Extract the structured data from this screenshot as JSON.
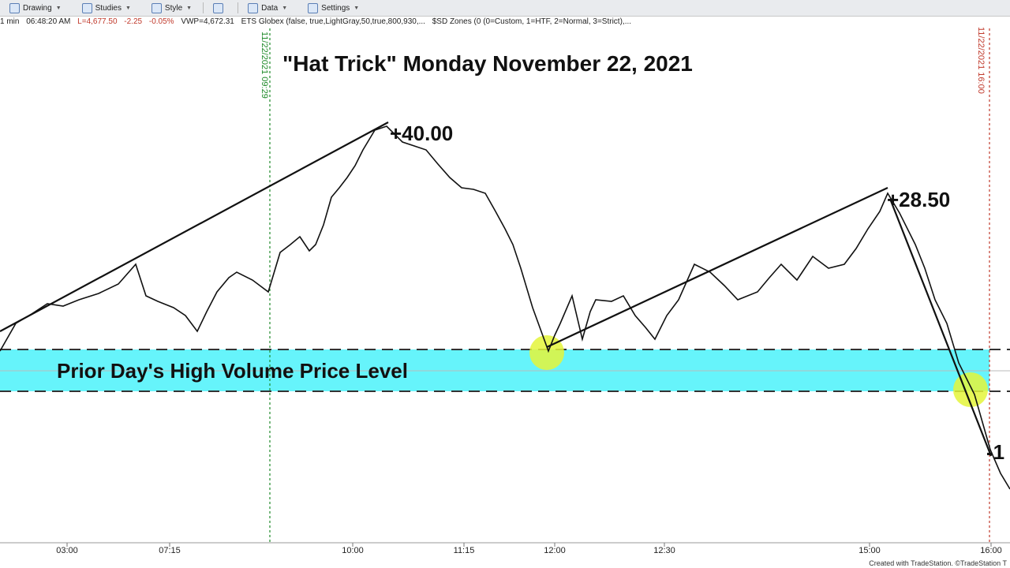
{
  "toolbar": {
    "items": [
      "Drawing",
      "Studies",
      "Style",
      "Data",
      "Settings"
    ]
  },
  "status": {
    "interval": "1 min",
    "time": "06:48:20 AM",
    "last": "L=4,677.50",
    "change": "-2.25",
    "change_pct": "-0.05%",
    "vwap": "VWP=4,672.31",
    "study_1": "ETS Globex (false,  true,LightGray,50,true,800,930,...",
    "study_2": "$SD Zones (0  (0=Custom, 1=HTF, 2=Normal, 3=Strict),..."
  },
  "title": "\"Hat Trick\" Monday November 22, 2021",
  "markers": {
    "start": "11/22/2021 09:29",
    "end": "11/22/2021 16:00"
  },
  "annotations": [
    "+40.00",
    "+28.50",
    "-1"
  ],
  "zone_label": "Prior Day's High Volume Price Level",
  "time_labels": [
    "03:00",
    "07:15",
    "10:00",
    "11:15",
    "12:00",
    "12:30",
    "15:00",
    "16:00"
  ],
  "footer": "Created with TradeStation. ©TradeStation T"
}
